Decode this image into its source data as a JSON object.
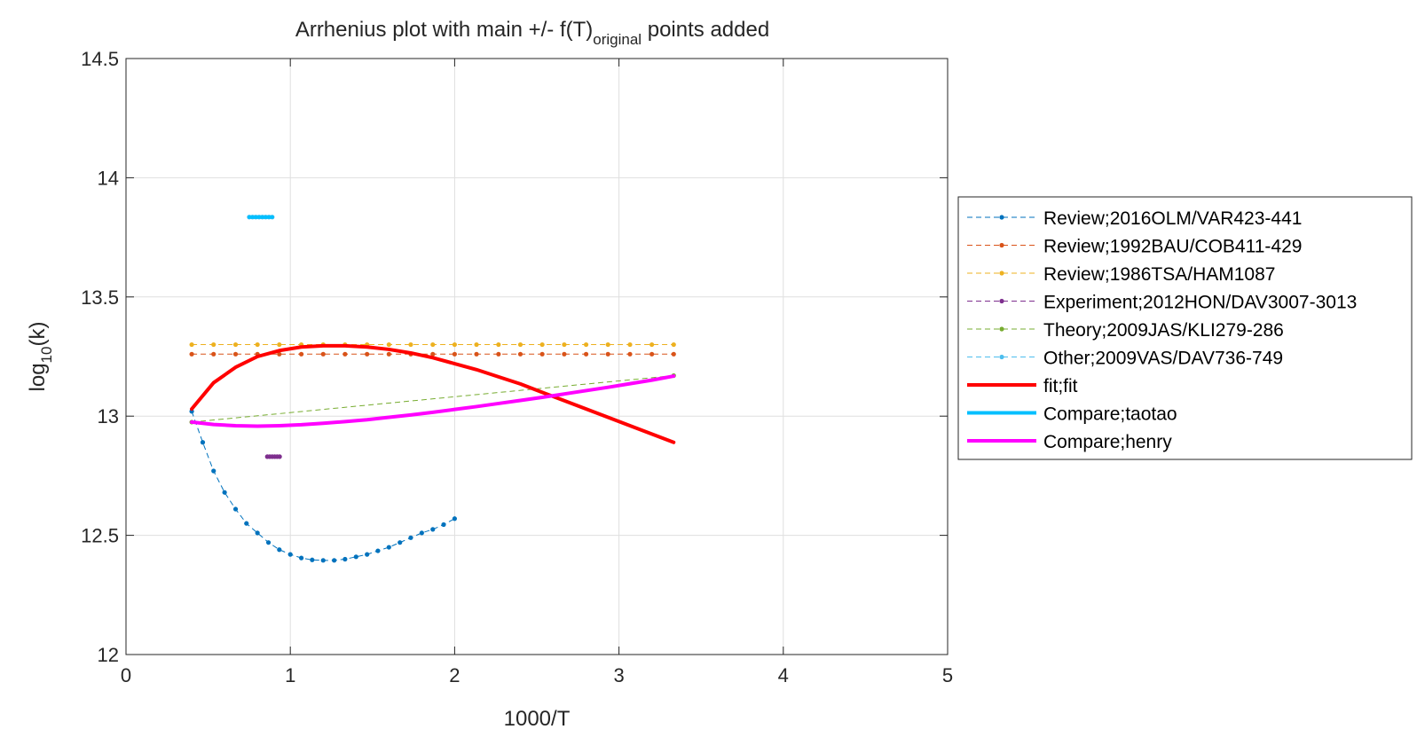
{
  "chart_data": {
    "type": "line",
    "title": {
      "main": "Arrhenius plot with main +/- f(T)",
      "subscript": "original",
      "rest": " points added"
    },
    "xlabel": "1000/T",
    "ylabel": {
      "prefix": "log",
      "subscript": "10",
      "suffix": "(k)"
    },
    "xlim": [
      0,
      5
    ],
    "ylim": [
      12,
      14.5
    ],
    "xticks": [
      0,
      1,
      2,
      3,
      4,
      5
    ],
    "yticks": [
      12,
      12.5,
      13,
      13.5,
      14,
      14.5
    ],
    "xtick_labels": [
      "0",
      "1",
      "2",
      "3",
      "4",
      "5"
    ],
    "ytick_labels": [
      "12",
      "12.5",
      "13",
      "13.5",
      "14",
      "14.5"
    ],
    "grid": true,
    "legend_position": "outside-right",
    "series": [
      {
        "name": "Review;2016OLM/VAR423-441",
        "color": "#0072BD",
        "style": "dashed-markers",
        "x": [
          0.4,
          0.467,
          0.533,
          0.6,
          0.667,
          0.733,
          0.8,
          0.867,
          0.933,
          1.0,
          1.067,
          1.133,
          1.2,
          1.267,
          1.333,
          1.4,
          1.467,
          1.533,
          1.6,
          1.667,
          1.733,
          1.8,
          1.867,
          1.933,
          2.0
        ],
        "y": [
          13.02,
          12.89,
          12.77,
          12.68,
          12.61,
          12.55,
          12.51,
          12.47,
          12.44,
          12.42,
          12.405,
          12.397,
          12.395,
          12.395,
          12.4,
          12.41,
          12.42,
          12.435,
          12.45,
          12.47,
          12.49,
          12.51,
          12.525,
          12.545,
          12.57
        ]
      },
      {
        "name": "Review;1992BAU/COB411-429",
        "color": "#D95319",
        "style": "dashed-markers",
        "x": [
          0.4,
          0.533,
          0.667,
          0.8,
          0.933,
          1.067,
          1.2,
          1.333,
          1.467,
          1.6,
          1.733,
          1.867,
          2.0,
          2.133,
          2.267,
          2.4,
          2.533,
          2.667,
          2.8,
          2.933,
          3.067,
          3.2,
          3.333
        ],
        "y": [
          13.26,
          13.26,
          13.26,
          13.26,
          13.26,
          13.26,
          13.26,
          13.26,
          13.26,
          13.26,
          13.26,
          13.26,
          13.26,
          13.26,
          13.26,
          13.26,
          13.26,
          13.26,
          13.26,
          13.26,
          13.26,
          13.26,
          13.26
        ]
      },
      {
        "name": "Review;1986TSA/HAM1087",
        "color": "#EDB120",
        "style": "dashed-markers",
        "x": [
          0.4,
          0.533,
          0.667,
          0.8,
          0.933,
          1.067,
          1.2,
          1.333,
          1.467,
          1.6,
          1.733,
          1.867,
          2.0,
          2.133,
          2.267,
          2.4,
          2.533,
          2.667,
          2.8,
          2.933,
          3.067,
          3.2,
          3.333
        ],
        "y": [
          13.3,
          13.3,
          13.3,
          13.3,
          13.3,
          13.3,
          13.3,
          13.3,
          13.3,
          13.3,
          13.3,
          13.3,
          13.3,
          13.3,
          13.3,
          13.3,
          13.3,
          13.3,
          13.3,
          13.3,
          13.3,
          13.3,
          13.3
        ]
      },
      {
        "name": "Experiment;2012HON/DAV3007-3013",
        "color": "#7E2F8E",
        "style": "dashed-markers",
        "x": [
          0.86,
          0.875,
          0.89,
          0.905,
          0.92,
          0.935
        ],
        "y": [
          12.83,
          12.83,
          12.83,
          12.83,
          12.83,
          12.83
        ]
      },
      {
        "name": "Theory;2009JAS/KLI279-286",
        "color": "#77AC30",
        "style": "dashed-markers",
        "x": [
          0.4,
          3.333
        ],
        "y": [
          12.975,
          13.17
        ]
      },
      {
        "name": "Other;2009VAS/DAV736-749",
        "color": "#4DBEEE",
        "style": "dashed-markers",
        "x": [
          0.75,
          0.77,
          0.79,
          0.81,
          0.83,
          0.85,
          0.87,
          0.89
        ],
        "y": [
          13.835,
          13.835,
          13.835,
          13.835,
          13.835,
          13.835,
          13.835,
          13.835
        ]
      },
      {
        "name": "fit;fit",
        "color": "#FF0000",
        "style": "solid-thick",
        "x": [
          0.4,
          0.533,
          0.667,
          0.8,
          0.933,
          1.067,
          1.2,
          1.333,
          1.467,
          1.6,
          1.733,
          1.867,
          2.0,
          2.133,
          2.267,
          2.4,
          2.533,
          2.667,
          2.8,
          2.933,
          3.067,
          3.2,
          3.333
        ],
        "y": [
          13.03,
          13.14,
          13.205,
          13.25,
          13.275,
          13.29,
          13.295,
          13.295,
          13.29,
          13.28,
          13.265,
          13.245,
          13.22,
          13.195,
          13.165,
          13.135,
          13.1,
          13.065,
          13.03,
          12.995,
          12.96,
          12.925,
          12.89
        ]
      },
      {
        "name": "Compare;taotao",
        "color": "#00BFFF",
        "style": "solid-thick",
        "x": [
          0.75,
          0.89
        ],
        "y": [
          13.835,
          13.835
        ]
      },
      {
        "name": "Compare;henry",
        "color": "#FF00FF",
        "style": "solid-thick",
        "x": [
          0.4,
          0.533,
          0.667,
          0.8,
          0.933,
          1.067,
          1.2,
          1.333,
          1.467,
          1.6,
          1.733,
          1.867,
          2.0,
          2.133,
          2.267,
          2.4,
          2.533,
          2.667,
          2.8,
          2.933,
          3.067,
          3.2,
          3.333
        ],
        "y": [
          12.975,
          12.965,
          12.96,
          12.958,
          12.96,
          12.964,
          12.97,
          12.977,
          12.985,
          12.995,
          13.005,
          13.016,
          13.028,
          13.04,
          13.053,
          13.066,
          13.079,
          13.093,
          13.107,
          13.121,
          13.136,
          13.151,
          13.168
        ]
      }
    ]
  }
}
